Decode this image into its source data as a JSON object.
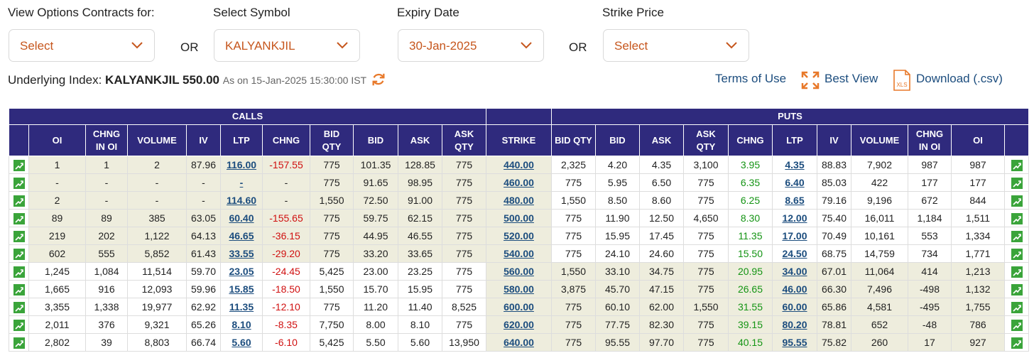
{
  "filters": [
    {
      "label": "View Options Contracts for:",
      "value": "Select"
    },
    {
      "label": "Select Symbol",
      "value": "KALYANKJIL"
    },
    {
      "label": "Expiry Date",
      "value": "30-Jan-2025"
    },
    {
      "label": "Strike Price",
      "value": "Select"
    }
  ],
  "or_labels": [
    "OR",
    "OR"
  ],
  "underlying": {
    "label": "Underlying Index:",
    "value": "KALYANKJIL 550.00",
    "as_on": "As on 15-Jan-2025 15:30:00 IST"
  },
  "links": [
    "Terms of Use",
    "Best View",
    "Download (.csv)"
  ],
  "table": {
    "groups": [
      "CALLS",
      "PUTS"
    ],
    "columns": [
      "OI",
      "CHNG IN OI",
      "VOLUME",
      "IV",
      "LTP",
      "CHNG",
      "BID QTY",
      "BID",
      "ASK",
      "ASK QTY",
      "STRIKE",
      "BID QTY",
      "BID",
      "ASK",
      "ASK QTY",
      "CHNG",
      "LTP",
      "IV",
      "VOLUME",
      "CHNG IN OI",
      "OI"
    ],
    "rows": [
      [
        "1",
        "1",
        "2",
        "87.96",
        "116.00",
        "-157.55",
        "775",
        "101.35",
        "128.85",
        "775",
        "440.00",
        "2,325",
        "4.20",
        "4.35",
        "3,100",
        "3.95",
        "4.35",
        "88.83",
        "7,902",
        "987",
        "987"
      ],
      [
        "-",
        "-",
        "-",
        "-",
        "-",
        "-",
        "775",
        "91.65",
        "98.95",
        "775",
        "460.00",
        "775",
        "5.95",
        "6.50",
        "775",
        "6.35",
        "6.40",
        "85.03",
        "422",
        "177",
        "177"
      ],
      [
        "2",
        "-",
        "-",
        "-",
        "114.60",
        "-",
        "1,550",
        "72.50",
        "91.00",
        "775",
        "480.00",
        "1,550",
        "8.50",
        "8.60",
        "775",
        "6.25",
        "8.65",
        "79.16",
        "9,196",
        "672",
        "844"
      ],
      [
        "89",
        "89",
        "385",
        "63.05",
        "60.40",
        "-155.65",
        "775",
        "59.75",
        "62.15",
        "775",
        "500.00",
        "775",
        "11.90",
        "12.50",
        "4,650",
        "8.30",
        "12.00",
        "75.40",
        "16,011",
        "1,184",
        "1,511"
      ],
      [
        "219",
        "202",
        "1,122",
        "64.13",
        "46.65",
        "-36.15",
        "775",
        "44.95",
        "46.55",
        "775",
        "520.00",
        "775",
        "15.95",
        "17.45",
        "775",
        "11.35",
        "17.00",
        "70.49",
        "10,161",
        "553",
        "1,334"
      ],
      [
        "602",
        "555",
        "5,852",
        "61.43",
        "33.55",
        "-29.20",
        "775",
        "33.20",
        "33.65",
        "775",
        "540.00",
        "775",
        "24.10",
        "24.60",
        "775",
        "15.50",
        "24.50",
        "68.75",
        "14,759",
        "734",
        "1,771"
      ],
      [
        "1,245",
        "1,084",
        "11,514",
        "59.70",
        "23.05",
        "-24.45",
        "5,425",
        "23.00",
        "23.25",
        "775",
        "560.00",
        "1,550",
        "33.10",
        "34.75",
        "775",
        "20.95",
        "34.00",
        "67.01",
        "11,064",
        "414",
        "1,213"
      ],
      [
        "1,665",
        "916",
        "12,093",
        "59.96",
        "15.85",
        "-18.50",
        "1,550",
        "15.70",
        "15.95",
        "775",
        "580.00",
        "3,875",
        "45.70",
        "47.15",
        "775",
        "26.65",
        "46.00",
        "66.30",
        "7,496",
        "-498",
        "1,132"
      ],
      [
        "3,355",
        "1,338",
        "19,977",
        "62.92",
        "11.35",
        "-12.10",
        "775",
        "11.20",
        "11.40",
        "8,525",
        "600.00",
        "775",
        "60.10",
        "62.00",
        "1,550",
        "31.55",
        "60.00",
        "65.86",
        "4,581",
        "-495",
        "1,755"
      ],
      [
        "2,011",
        "376",
        "9,321",
        "65.26",
        "8.10",
        "-8.35",
        "7,750",
        "8.00",
        "8.10",
        "775",
        "620.00",
        "775",
        "77.75",
        "82.30",
        "775",
        "39.15",
        "80.20",
        "78.81",
        "652",
        "-48",
        "786"
      ],
      [
        "2,802",
        "39",
        "8,803",
        "66.74",
        "5.60",
        "-6.10",
        "5,425",
        "5.50",
        "5.60",
        "13,950",
        "640.00",
        "775",
        "95.55",
        "97.70",
        "775",
        "40.15",
        "95.55",
        "75.82",
        "260",
        "17",
        "927"
      ]
    ]
  }
}
